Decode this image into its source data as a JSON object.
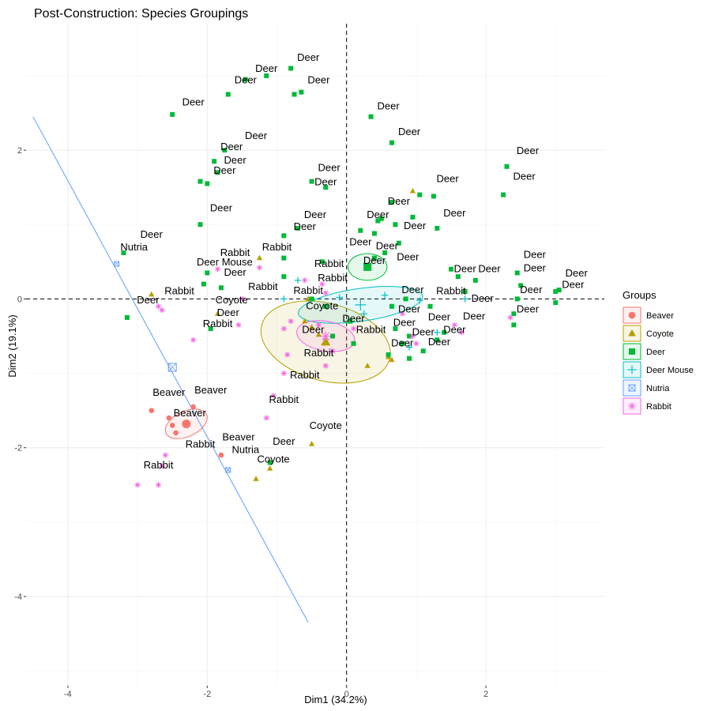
{
  "chart_data": {
    "type": "scatter",
    "title": "Post-Construction: Species Groupings",
    "xlabel": "Dim1 (34.2%)",
    "ylabel": "Dim2 (19.1%)",
    "xlim": [
      -4.6,
      3.7
    ],
    "ylim": [
      -5.2,
      3.7
    ],
    "x_ticks": [
      -4,
      -2,
      0,
      2
    ],
    "y_ticks": [
      -4,
      -2,
      0,
      2
    ],
    "x_tick_labels": [
      "-4",
      "-2",
      "0",
      "2"
    ],
    "y_tick_labels": [
      "-4",
      "-2",
      "0",
      "2"
    ],
    "grid": true,
    "reference_lines": {
      "x": 0,
      "y": 0,
      "style": "dashed"
    },
    "legend": {
      "title": "Groups",
      "position": "right"
    },
    "groups": [
      {
        "name": "Beaver",
        "color": "#F8766D",
        "shape": "circle",
        "centroid": [
          -2.3,
          -1.68
        ],
        "ellipse": {
          "rx": 0.32,
          "ry": 0.17,
          "angle_deg": -25
        },
        "points": [
          [
            -2.8,
            -1.5
          ],
          [
            -2.55,
            -1.6
          ],
          [
            -2.5,
            -1.7
          ],
          [
            -2.45,
            -1.8
          ],
          [
            -2.2,
            -1.45
          ],
          [
            -1.8,
            -2.1
          ]
        ]
      },
      {
        "name": "Coyote",
        "color": "#B79F00",
        "shape": "triangle",
        "centroid": [
          -0.3,
          -0.58
        ],
        "ellipse": {
          "rx": 0.95,
          "ry": 0.52,
          "angle_deg": 15
        },
        "points": [
          [
            -2.8,
            0.06
          ],
          [
            -1.85,
            -0.2
          ],
          [
            -1.25,
            0.55
          ],
          [
            -0.6,
            -0.3
          ],
          [
            -0.4,
            -0.48
          ],
          [
            -0.5,
            -0.38
          ],
          [
            -0.55,
            0.0
          ],
          [
            0.3,
            -0.9
          ],
          [
            0.6,
            -0.78
          ],
          [
            0.65,
            -0.82
          ],
          [
            0.95,
            1.45
          ],
          [
            -0.5,
            -1.95
          ],
          [
            -1.3,
            -2.42
          ],
          [
            -1.1,
            -2.28
          ]
        ]
      },
      {
        "name": "Deer",
        "color": "#00BA38",
        "shape": "square",
        "centroid": [
          0.3,
          0.43
        ],
        "ellipse": {
          "rx": 0.28,
          "ry": 0.18,
          "angle_deg": 0
        },
        "points": [
          [
            -0.8,
            3.1
          ],
          [
            -1.15,
            3.0
          ],
          [
            -1.45,
            2.95
          ],
          [
            -0.75,
            2.75
          ],
          [
            -0.65,
            2.78
          ],
          [
            -1.7,
            2.75
          ],
          [
            -2.5,
            2.48
          ],
          [
            0.35,
            2.45
          ],
          [
            0.65,
            2.1
          ],
          [
            -1.9,
            1.85
          ],
          [
            -1.85,
            1.7
          ],
          [
            -2.1,
            1.58
          ],
          [
            -2.0,
            1.55
          ],
          [
            -1.75,
            2.0
          ],
          [
            -0.5,
            1.58
          ],
          [
            -0.3,
            1.5
          ],
          [
            1.05,
            1.4
          ],
          [
            1.25,
            1.38
          ],
          [
            2.3,
            1.78
          ],
          [
            2.25,
            1.4
          ],
          [
            0.65,
            1.3
          ],
          [
            0.95,
            1.1
          ],
          [
            0.45,
            1.05
          ],
          [
            0.5,
            1.08
          ],
          [
            0.7,
            1.0
          ],
          [
            1.3,
            0.95
          ],
          [
            -2.1,
            1.0
          ],
          [
            -0.9,
            0.85
          ],
          [
            -0.7,
            0.95
          ],
          [
            0.2,
            0.92
          ],
          [
            0.4,
            0.88
          ],
          [
            0.75,
            0.75
          ],
          [
            0.55,
            0.62
          ],
          [
            -0.9,
            0.55
          ],
          [
            -0.35,
            0.5
          ],
          [
            0.4,
            0.55
          ],
          [
            -3.2,
            0.62
          ],
          [
            -2.0,
            0.35
          ],
          [
            -1.8,
            0.15
          ],
          [
            -0.9,
            0.3
          ],
          [
            -0.5,
            0.0
          ],
          [
            -0.3,
            -0.1
          ],
          [
            -2.05,
            0.2
          ],
          [
            -1.95,
            -0.4
          ],
          [
            -3.15,
            -0.25
          ],
          [
            1.5,
            0.4
          ],
          [
            1.6,
            0.3
          ],
          [
            1.85,
            0.25
          ],
          [
            2.45,
            0.35
          ],
          [
            2.5,
            0.18
          ],
          [
            2.45,
            0.0
          ],
          [
            2.4,
            -0.2
          ],
          [
            3.0,
            0.1
          ],
          [
            3.05,
            0.12
          ],
          [
            3.0,
            -0.05
          ],
          [
            0.7,
            -0.4
          ],
          [
            0.9,
            -0.5
          ],
          [
            1.1,
            -0.7
          ],
          [
            1.3,
            -0.55
          ],
          [
            1.4,
            -0.45
          ],
          [
            1.2,
            -0.1
          ],
          [
            0.85,
            0.0
          ],
          [
            0.65,
            -0.1
          ],
          [
            0.6,
            -0.75
          ],
          [
            0.9,
            -0.8
          ],
          [
            2.4,
            -0.35
          ],
          [
            1.7,
            0.1
          ],
          [
            -0.2,
            -0.5
          ],
          [
            0.05,
            -0.3
          ],
          [
            0.1,
            -0.6
          ],
          [
            -1.1,
            -2.2
          ],
          [
            0.8,
            -0.6
          ]
        ]
      },
      {
        "name": "Deer Mouse",
        "color": "#00BFC4",
        "shape": "plus",
        "centroid": [
          0.2,
          -0.08
        ],
        "ellipse": {
          "rx": 0.9,
          "ry": 0.22,
          "angle_deg": -8
        },
        "points": [
          [
            -0.9,
            0.0
          ],
          [
            -0.1,
            0.02
          ],
          [
            0.25,
            -0.2
          ],
          [
            0.55,
            0.05
          ],
          [
            1.05,
            -0.02
          ],
          [
            1.7,
            0.0
          ],
          [
            1.3,
            -0.45
          ],
          [
            0.9,
            -0.65
          ],
          [
            -0.7,
            0.25
          ]
        ]
      },
      {
        "name": "Nutria",
        "color": "#619CFF",
        "shape": "square-cross",
        "centroid": [
          -2.5,
          -0.92
        ],
        "line": {
          "x": [
            -4.5,
            -0.55
          ],
          "y": [
            2.45,
            -4.35
          ]
        },
        "points": [
          [
            -3.3,
            0.47
          ],
          [
            -1.7,
            -2.3
          ]
        ]
      },
      {
        "name": "Rabbit",
        "color": "#F564E3",
        "shape": "asterisk",
        "centroid": [
          -0.3,
          -0.5
        ],
        "ellipse": {
          "rx": 0.42,
          "ry": 0.2,
          "angle_deg": 10
        },
        "points": [
          [
            -1.85,
            0.4
          ],
          [
            -1.25,
            0.42
          ],
          [
            -0.6,
            0.25
          ],
          [
            -0.35,
            0.2
          ],
          [
            -0.3,
            0.08
          ],
          [
            -2.7,
            -0.1
          ],
          [
            -2.65,
            -0.15
          ],
          [
            -1.5,
            0.0
          ],
          [
            -1.55,
            -0.35
          ],
          [
            -0.9,
            -0.4
          ],
          [
            -0.8,
            -0.3
          ],
          [
            -0.85,
            -0.75
          ],
          [
            -0.4,
            -0.35
          ],
          [
            0.1,
            -0.4
          ],
          [
            0.95,
            -0.5
          ],
          [
            0.8,
            -0.2
          ],
          [
            1.55,
            -0.35
          ],
          [
            1.65,
            -0.45
          ],
          [
            2.35,
            -0.25
          ],
          [
            -2.2,
            -0.55
          ],
          [
            -0.3,
            -0.9
          ],
          [
            -0.9,
            -1.0
          ],
          [
            -1.05,
            -1.3
          ],
          [
            -1.15,
            -1.6
          ],
          [
            -2.6,
            -2.1
          ],
          [
            -2.65,
            -2.25
          ],
          [
            -3.0,
            -2.5
          ],
          [
            -2.7,
            -2.5
          ],
          [
            -0.3,
            -0.55
          ],
          [
            -0.2,
            -0.7
          ],
          [
            1.0,
            -0.6
          ]
        ]
      }
    ],
    "point_labels": [
      {
        "text": "Deer",
        "x": -0.55,
        "y": 3.2
      },
      {
        "text": "Deer",
        "x": -1.15,
        "y": 3.05
      },
      {
        "text": "Deer",
        "x": -1.45,
        "y": 2.9
      },
      {
        "text": "Deer",
        "x": -0.4,
        "y": 2.9
      },
      {
        "text": "Deer",
        "x": -2.2,
        "y": 2.6
      },
      {
        "text": "Deer",
        "x": 0.6,
        "y": 2.55
      },
      {
        "text": "Deer",
        "x": 0.9,
        "y": 2.2
      },
      {
        "text": "Deer",
        "x": -1.3,
        "y": 2.15
      },
      {
        "text": "Deer",
        "x": -1.65,
        "y": 2.0
      },
      {
        "text": "Deer",
        "x": -1.6,
        "y": 1.82
      },
      {
        "text": "Deer",
        "x": -1.75,
        "y": 1.68
      },
      {
        "text": "Deer",
        "x": 2.6,
        "y": 1.95
      },
      {
        "text": "Deer",
        "x": 2.55,
        "y": 1.6
      },
      {
        "text": "Deer",
        "x": -0.25,
        "y": 1.72
      },
      {
        "text": "Deer",
        "x": -0.3,
        "y": 1.53
      },
      {
        "text": "Deer",
        "x": 1.45,
        "y": 1.57
      },
      {
        "text": "Deer",
        "x": 0.75,
        "y": 1.27
      },
      {
        "text": "Deer",
        "x": -1.8,
        "y": 1.18
      },
      {
        "text": "Deer",
        "x": 1.55,
        "y": 1.11
      },
      {
        "text": "Deer",
        "x": 0.45,
        "y": 1.09
      },
      {
        "text": "Deer",
        "x": -0.45,
        "y": 1.09
      },
      {
        "text": "Deer",
        "x": -0.6,
        "y": 0.93
      },
      {
        "text": "Deer",
        "x": 0.98,
        "y": 0.94
      },
      {
        "text": "Deer",
        "x": -2.8,
        "y": 0.82
      },
      {
        "text": "Nutria",
        "x": -3.05,
        "y": 0.65
      },
      {
        "text": "Rabbit",
        "x": -1.6,
        "y": 0.58
      },
      {
        "text": "Rabbit",
        "x": -1.0,
        "y": 0.65
      },
      {
        "text": "Deer",
        "x": 0.2,
        "y": 0.72
      },
      {
        "text": "Deer",
        "x": 0.58,
        "y": 0.67
      },
      {
        "text": "Deer",
        "x": 0.88,
        "y": 0.52
      },
      {
        "text": "Deer Mouse",
        "x": -1.75,
        "y": 0.45
      },
      {
        "text": "Rabbit",
        "x": -0.25,
        "y": 0.43
      },
      {
        "text": "Deer",
        "x": 0.4,
        "y": 0.47
      },
      {
        "text": "Deer",
        "x": -1.6,
        "y": 0.31
      },
      {
        "text": "Deer",
        "x": 1.7,
        "y": 0.36
      },
      {
        "text": "Deer",
        "x": 2.05,
        "y": 0.36
      },
      {
        "text": "Deer",
        "x": 2.7,
        "y": 0.55
      },
      {
        "text": "Deer",
        "x": 2.7,
        "y": 0.37
      },
      {
        "text": "Deer",
        "x": 3.3,
        "y": 0.3
      },
      {
        "text": "Deer",
        "x": 3.25,
        "y": 0.15
      },
      {
        "text": "Rabbit",
        "x": -0.2,
        "y": 0.24
      },
      {
        "text": "Rabbit",
        "x": -1.2,
        "y": 0.12
      },
      {
        "text": "Rabbit",
        "x": -0.55,
        "y": 0.07
      },
      {
        "text": "Rabbit",
        "x": -2.4,
        "y": 0.06
      },
      {
        "text": "Rabbit",
        "x": 1.5,
        "y": 0.06
      },
      {
        "text": "Deer",
        "x": 0.95,
        "y": 0.08
      },
      {
        "text": "Deer",
        "x": 2.65,
        "y": 0.08
      },
      {
        "text": "Deer",
        "x": 1.95,
        "y": -0.04
      },
      {
        "text": "Deer",
        "x": -2.85,
        "y": -0.06
      },
      {
        "text": "Coyote",
        "x": -1.65,
        "y": -0.06
      },
      {
        "text": "Coyote",
        "x": -0.35,
        "y": -0.14
      },
      {
        "text": "Deer",
        "x": 0.9,
        "y": -0.18
      },
      {
        "text": "Deer",
        "x": 2.6,
        "y": -0.18
      },
      {
        "text": "Deer",
        "x": -1.7,
        "y": -0.23
      },
      {
        "text": "Deer",
        "x": 0.1,
        "y": -0.31
      },
      {
        "text": "Deer",
        "x": 1.33,
        "y": -0.29
      },
      {
        "text": "Deer",
        "x": 1.83,
        "y": -0.28
      },
      {
        "text": "Deer",
        "x": 0.83,
        "y": -0.36
      },
      {
        "text": "Rabbit",
        "x": -1.85,
        "y": -0.38
      },
      {
        "text": "Deer",
        "x": -0.48,
        "y": -0.46
      },
      {
        "text": "Rabbit",
        "x": 0.35,
        "y": -0.46
      },
      {
        "text": "Deer",
        "x": 1.1,
        "y": -0.49
      },
      {
        "text": "Deer",
        "x": 1.55,
        "y": -0.46
      },
      {
        "text": "Deer",
        "x": 0.8,
        "y": -0.64
      },
      {
        "text": "Deer",
        "x": 1.33,
        "y": -0.62
      },
      {
        "text": "Rabbit",
        "x": -0.4,
        "y": -0.77
      },
      {
        "text": "Rabbit",
        "x": -0.6,
        "y": -1.07
      },
      {
        "text": "Beaver",
        "x": -2.55,
        "y": -1.3
      },
      {
        "text": "Beaver",
        "x": -1.95,
        "y": -1.27
      },
      {
        "text": "Rabbit",
        "x": -0.9,
        "y": -1.4
      },
      {
        "text": "Beaver",
        "x": -2.25,
        "y": -1.58
      },
      {
        "text": "Coyote",
        "x": -0.3,
        "y": -1.75
      },
      {
        "text": "Beaver",
        "x": -1.55,
        "y": -1.9
      },
      {
        "text": "Deer",
        "x": -0.9,
        "y": -1.96
      },
      {
        "text": "Rabbit",
        "x": -2.1,
        "y": -2.0
      },
      {
        "text": "Nutria",
        "x": -1.45,
        "y": -2.07
      },
      {
        "text": "Coyote",
        "x": -1.05,
        "y": -2.2
      },
      {
        "text": "Rabbit",
        "x": -2.7,
        "y": -2.28
      }
    ]
  }
}
